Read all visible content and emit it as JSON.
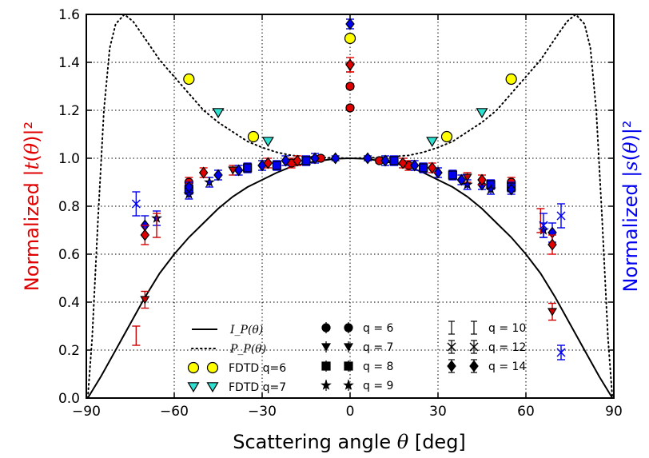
{
  "chart_data": {
    "type": "scatter",
    "xlabel": "Scattering angle θ [deg]",
    "ylabel_left": "Normalized |t(θ)|²",
    "ylabel_right": "Normalized |s(θ)|²",
    "xlim": [
      -90,
      90
    ],
    "ylim": [
      0,
      1.6
    ],
    "x_ticks": [
      "−90",
      "−60",
      "−30",
      "0",
      "30",
      "60",
      "90"
    ],
    "y_ticks": [
      "0.0",
      "0.2",
      "0.4",
      "0.6",
      "0.8",
      "1.0",
      "1.2",
      "1.4",
      "1.6"
    ],
    "grid": true,
    "legend_placement": "bottom-center",
    "colors": {
      "t": "#e00000",
      "s": "#0000ee",
      "fdtd_q6": "#ffff00",
      "fdtd_q7": "#2de0cf",
      "dark_red": "#b22222"
    },
    "legend": {
      "lines": [
        "I_P(θ)",
        "P_P(θ)"
      ],
      "fdtd": [
        "FDTD q=6",
        "FDTD q=7"
      ],
      "q_series": [
        "q = 6",
        "q = 7",
        "q = 8",
        "q = 9",
        "q = 10",
        "q = 12",
        "q = 14"
      ]
    },
    "series": [
      {
        "name": "I_P(θ)",
        "kind": "line",
        "style": "solid",
        "points": [
          [
            -89.5,
            0.0
          ],
          [
            -88,
            0.03
          ],
          [
            -85,
            0.09
          ],
          [
            -80,
            0.2
          ],
          [
            -75,
            0.31
          ],
          [
            -70,
            0.42
          ],
          [
            -65,
            0.52
          ],
          [
            -60,
            0.6
          ],
          [
            -55,
            0.67
          ],
          [
            -50,
            0.73
          ],
          [
            -45,
            0.79
          ],
          [
            -40,
            0.84
          ],
          [
            -35,
            0.88
          ],
          [
            -30,
            0.91
          ],
          [
            -25,
            0.94
          ],
          [
            -20,
            0.965
          ],
          [
            -15,
            0.98
          ],
          [
            -10,
            0.99
          ],
          [
            -5,
            0.998
          ],
          [
            0,
            1.0
          ],
          [
            5,
            0.998
          ],
          [
            10,
            0.99
          ],
          [
            15,
            0.98
          ],
          [
            20,
            0.965
          ],
          [
            25,
            0.94
          ],
          [
            30,
            0.91
          ],
          [
            35,
            0.88
          ],
          [
            40,
            0.84
          ],
          [
            45,
            0.79
          ],
          [
            50,
            0.73
          ],
          [
            55,
            0.67
          ],
          [
            60,
            0.6
          ],
          [
            65,
            0.52
          ],
          [
            70,
            0.42
          ],
          [
            75,
            0.31
          ],
          [
            80,
            0.2
          ],
          [
            85,
            0.09
          ],
          [
            88,
            0.03
          ],
          [
            89.5,
            0.0
          ]
        ]
      },
      {
        "name": "P_P(θ)",
        "kind": "line",
        "style": "dotted",
        "points": [
          [
            -89.5,
            0.0
          ],
          [
            -88,
            0.25
          ],
          [
            -86,
            0.75
          ],
          [
            -84,
            1.2
          ],
          [
            -82,
            1.46
          ],
          [
            -80,
            1.56
          ],
          [
            -77,
            1.6
          ],
          [
            -74,
            1.57
          ],
          [
            -70,
            1.5
          ],
          [
            -65,
            1.41
          ],
          [
            -60,
            1.34
          ],
          [
            -55,
            1.27
          ],
          [
            -50,
            1.2
          ],
          [
            -45,
            1.15
          ],
          [
            -40,
            1.11
          ],
          [
            -35,
            1.07
          ],
          [
            -30,
            1.045
          ],
          [
            -25,
            1.025
          ],
          [
            -20,
            1.012
          ],
          [
            -10,
            1.003
          ],
          [
            0,
            1.0
          ],
          [
            10,
            1.003
          ],
          [
            20,
            1.012
          ],
          [
            25,
            1.025
          ],
          [
            30,
            1.045
          ],
          [
            35,
            1.07
          ],
          [
            40,
            1.11
          ],
          [
            45,
            1.15
          ],
          [
            50,
            1.2
          ],
          [
            55,
            1.27
          ],
          [
            60,
            1.34
          ],
          [
            65,
            1.41
          ],
          [
            70,
            1.5
          ],
          [
            74,
            1.57
          ],
          [
            77,
            1.6
          ],
          [
            80,
            1.56
          ],
          [
            82,
            1.46
          ],
          [
            84,
            1.2
          ],
          [
            86,
            0.75
          ],
          [
            88,
            0.25
          ],
          [
            89.5,
            0.0
          ]
        ]
      },
      {
        "name": "FDTD q=6",
        "kind": "marker",
        "marker": "circle",
        "color": "#ffff00",
        "points": [
          [
            -55,
            1.33
          ],
          [
            -33,
            1.09
          ],
          [
            0,
            1.5
          ],
          [
            33,
            1.09
          ],
          [
            55,
            1.33
          ]
        ]
      },
      {
        "name": "FDTD q=7",
        "kind": "marker",
        "marker": "triangle",
        "color": "#2de0cf",
        "points": [
          [
            -45,
            1.19
          ],
          [
            -28,
            1.07
          ],
          [
            28,
            1.07
          ],
          [
            45,
            1.19
          ]
        ]
      },
      {
        "name": "q = 6",
        "kind": "marker",
        "marker": "circle",
        "color": "#e00000",
        "points": [
          [
            0,
            1.21,
            0.01
          ],
          [
            0,
            1.3,
            0.01
          ],
          [
            -55,
            0.9,
            0.02
          ],
          [
            55,
            0.9,
            0.02
          ],
          [
            -20,
            0.98,
            0.02
          ],
          [
            20,
            0.97,
            0.02
          ],
          [
            -10,
            1.0,
            0.01
          ],
          [
            10,
            0.99,
            0.01
          ]
        ]
      },
      {
        "name": "q = 7",
        "kind": "marker",
        "marker": "triangle",
        "color": "#cc0000",
        "points": [
          [
            -70,
            0.41,
            0.035
          ],
          [
            69,
            0.36,
            0.035
          ],
          [
            0,
            1.38,
            0.02
          ],
          [
            -40,
            0.95,
            0.02
          ],
          [
            40,
            0.92,
            0.02
          ]
        ]
      },
      {
        "name": "q = 8",
        "kind": "marker",
        "marker": "square",
        "color": "#0000ee",
        "points": [
          [
            -55,
            0.87,
            0.02
          ],
          [
            -35,
            0.96,
            0.02
          ],
          [
            -25,
            0.97,
            0.02
          ],
          [
            -15,
            0.99,
            0.02
          ],
          [
            15,
            0.99,
            0.02
          ],
          [
            25,
            0.96,
            0.02
          ],
          [
            35,
            0.93,
            0.02
          ],
          [
            48,
            0.89,
            0.02
          ],
          [
            55,
            0.88,
            0.02
          ]
        ]
      },
      {
        "name": "q = 9",
        "kind": "marker",
        "marker": "star",
        "color": "#0000ee",
        "points": [
          [
            -55,
            0.85,
            0.02
          ],
          [
            -48,
            0.9,
            0.02
          ],
          [
            -66,
            0.75,
            0.03
          ],
          [
            66,
            0.7,
            0.03
          ],
          [
            48,
            0.87,
            0.02
          ],
          [
            40,
            0.89,
            0.02
          ]
        ]
      },
      {
        "name": "q = 10",
        "kind": "marker",
        "marker": "none",
        "color": "#cc0000",
        "points": [
          [
            -73,
            0.26,
            0.04
          ],
          [
            -66,
            0.72,
            0.05
          ],
          [
            65,
            0.74,
            0.05
          ]
        ]
      },
      {
        "name": "q = 12",
        "kind": "marker",
        "marker": "x",
        "color": "#0000ee",
        "points": [
          [
            -73,
            0.81,
            0.05
          ],
          [
            72,
            0.19,
            0.03
          ],
          [
            72,
            0.76,
            0.05
          ],
          [
            66,
            0.72,
            0.05
          ]
        ]
      },
      {
        "name": "q = 14",
        "kind": "marker",
        "marker": "diamond",
        "color": "#0000ee",
        "points": [
          [
            0,
            1.56,
            0.02
          ],
          [
            -70,
            0.72,
            0.04
          ],
          [
            69,
            0.69,
            0.04
          ],
          [
            -55,
            0.88,
            0.02
          ],
          [
            -45,
            0.93,
            0.02
          ],
          [
            -38,
            0.95,
            0.02
          ],
          [
            -30,
            0.97,
            0.02
          ],
          [
            -22,
            0.99,
            0.02
          ],
          [
            -12,
            1.0,
            0.02
          ],
          [
            -5,
            1.0,
            0.01
          ],
          [
            6,
            1.0,
            0.01
          ],
          [
            12,
            0.99,
            0.02
          ],
          [
            22,
            0.97,
            0.02
          ],
          [
            30,
            0.94,
            0.02
          ],
          [
            38,
            0.91,
            0.02
          ],
          [
            45,
            0.89,
            0.02
          ],
          [
            55,
            0.87,
            0.02
          ]
        ]
      },
      {
        "name": "t (red)",
        "kind": "marker",
        "marker": "diamond",
        "color": "#e00000",
        "points": [
          [
            -70,
            0.68,
            0.04
          ],
          [
            69,
            0.64,
            0.04
          ],
          [
            0,
            1.39,
            0.03
          ],
          [
            -50,
            0.94,
            0.02
          ],
          [
            -28,
            0.98,
            0.02
          ],
          [
            -18,
            0.99,
            0.02
          ],
          [
            18,
            0.98,
            0.02
          ],
          [
            28,
            0.96,
            0.02
          ],
          [
            45,
            0.91,
            0.02
          ]
        ]
      }
    ]
  }
}
